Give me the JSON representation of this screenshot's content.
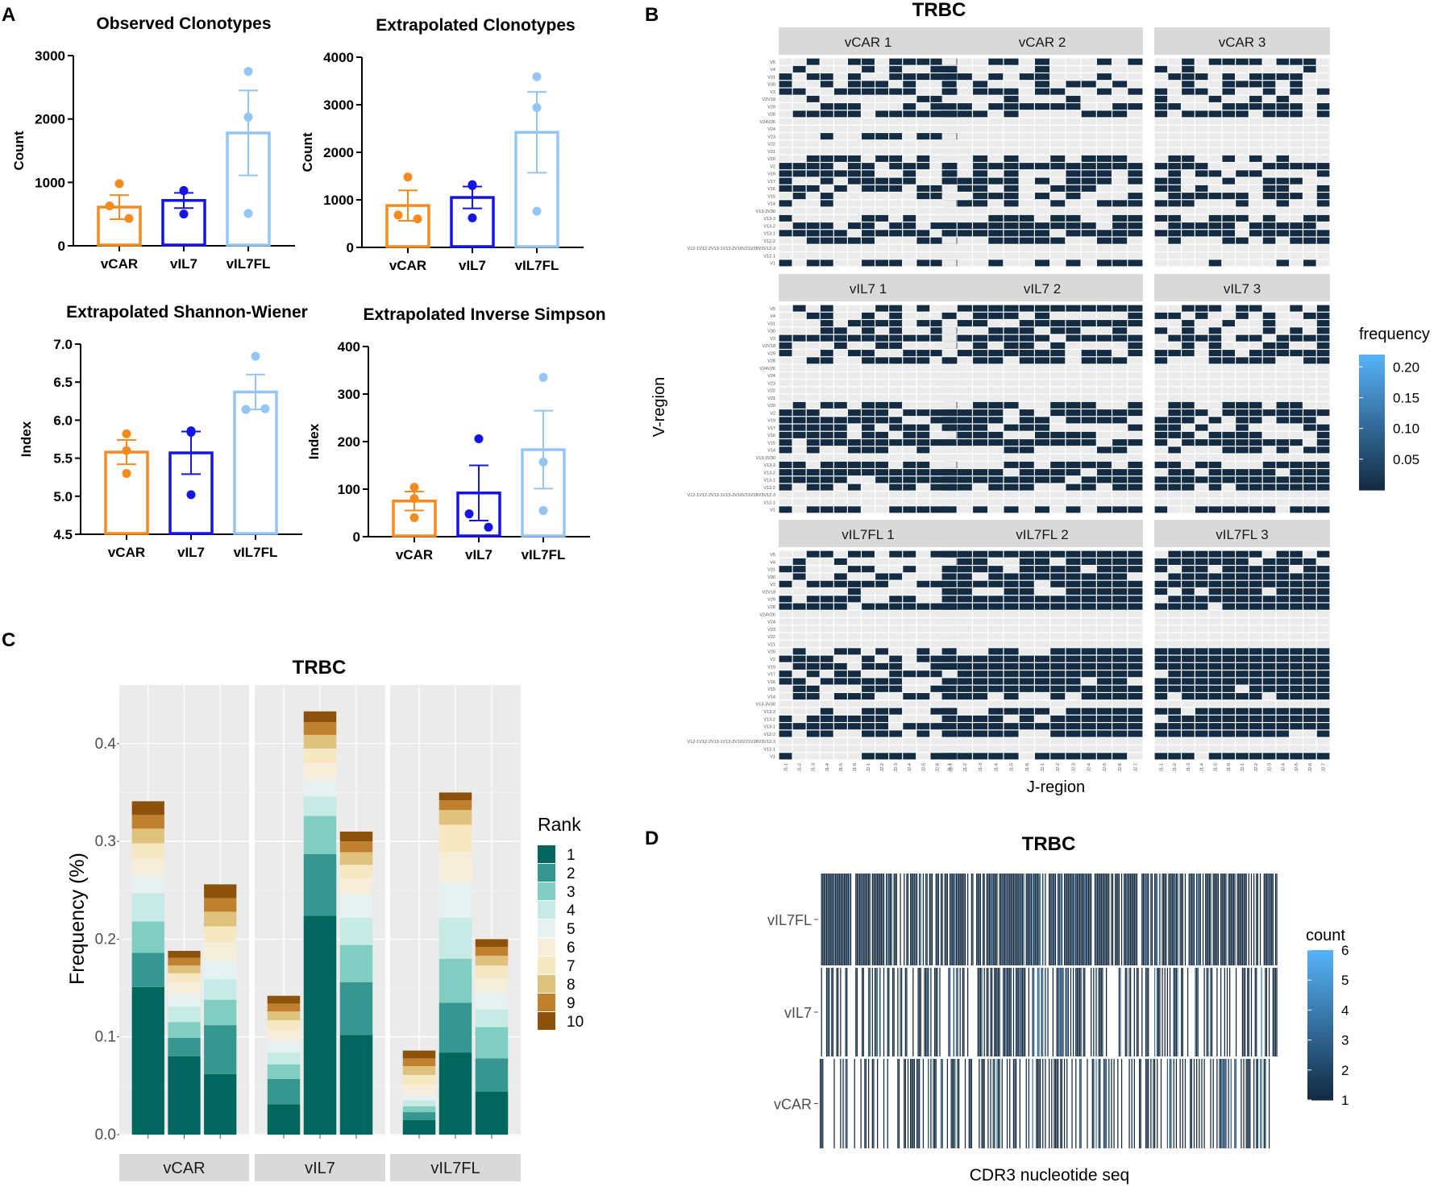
{
  "panels": {
    "A": "A",
    "B": "B",
    "C": "C",
    "D": "D"
  },
  "colors": {
    "vCAR": "#f58a1f",
    "vIL7": "#1414e6",
    "vIL7FL": "#94c6f5",
    "heat_dark": "#132b43",
    "heat_light": "#56b1f7",
    "ggplot_bg": "#ebebeb",
    "strip_bg": "#d9d9d9",
    "empty_cell": "#ebebeb"
  },
  "chart_data": [
    {
      "id": "observed",
      "type": "bar",
      "title": "Observed Clonotypes",
      "ylabel": "Count",
      "categories": [
        "vCAR",
        "vIL7",
        "vIL7FL"
      ],
      "yticks": [
        "0",
        "1000",
        "2000",
        "3000"
      ],
      "ylim": [
        0,
        3000
      ],
      "values": [
        610,
        715,
        1780
      ],
      "errors": [
        190,
        120,
        670
      ],
      "points": [
        [
          980,
          630,
          430
        ],
        [
          870,
          870,
          500
        ],
        [
          2750,
          2030,
          510
        ]
      ]
    },
    {
      "id": "extrap_clono",
      "type": "bar",
      "title": "Extrapolated Clonotypes",
      "ylabel": "Count",
      "categories": [
        "vCAR",
        "vIL7",
        "vIL7FL"
      ],
      "yticks": [
        "0",
        "1000",
        "2000",
        "3000",
        "4000"
      ],
      "ylim": [
        0,
        4000
      ],
      "values": [
        880,
        1050,
        2420
      ],
      "errors": [
        320,
        230,
        850
      ],
      "points": [
        [
          1480,
          680,
          600
        ],
        [
          1320,
          1300,
          620
        ],
        [
          3590,
          2940,
          760
        ]
      ]
    },
    {
      "id": "shannon",
      "type": "bar",
      "title": "Extrapolated Shannon-Wiener",
      "ylabel": "Index",
      "categories": [
        "vCAR",
        "vIL7",
        "vIL7FL"
      ],
      "yticks": [
        "4.5",
        "5.0",
        "5.5",
        "6.0",
        "6.5",
        "7.0"
      ],
      "ylim": [
        4.5,
        7.0
      ],
      "values": [
        5.58,
        5.57,
        6.37
      ],
      "errors": [
        0.16,
        0.28,
        0.23
      ],
      "points": [
        [
          5.82,
          5.6,
          5.3
        ],
        [
          5.86,
          5.84,
          5.02
        ],
        [
          6.84,
          6.14,
          6.15
        ]
      ]
    },
    {
      "id": "simpson",
      "type": "bar",
      "title": "Extrapolated Inverse Simpson",
      "ylabel": "Index",
      "categories": [
        "vCAR",
        "vIL7",
        "vIL7FL"
      ],
      "yticks": [
        "0",
        "100",
        "200",
        "300",
        "400"
      ],
      "ylim": [
        0,
        400
      ],
      "values": [
        75,
        92,
        183
      ],
      "errors": [
        20,
        58,
        82
      ],
      "points": [
        [
          104,
          80,
          40
        ],
        [
          206,
          48,
          20
        ],
        [
          335,
          157,
          55
        ]
      ]
    },
    {
      "id": "vj_heatmap",
      "type": "heatmap",
      "title": "TRBC",
      "xlabel": "J-region",
      "ylabel": "V-region",
      "facets": [
        "vCAR 1",
        "vCAR 2",
        "vCAR 3",
        "vIL7 1",
        "vIL7 2",
        "vIL7 3",
        "vIL7FL 1",
        "vIL7FL 2",
        "vIL7FL 3"
      ],
      "v_genes": [
        "V5",
        "V4",
        "V31",
        "V30",
        "V3",
        "V2V18",
        "V29",
        "V28",
        "V24V26",
        "V24",
        "V23",
        "V22",
        "V21",
        "V20",
        "V2",
        "V19",
        "V17",
        "V16",
        "V15",
        "V14",
        "V13-3V30",
        "V13-3",
        "V13-2",
        "V13-1",
        "V12-2",
        "V12-1V12-2V13-1V13-2V16V21V28V3V12-3",
        "V12-1",
        "V1"
      ],
      "j_genes": [
        "J1-1",
        "J1-2",
        "J1-3",
        "J1-4",
        "J1-5",
        "J1-6",
        "J2-1",
        "J2-2",
        "J2-3",
        "J2-4",
        "J2-5",
        "J2-6",
        "J2-7"
      ],
      "legend_title": "frequency",
      "legend_ticks": [
        "0.20",
        "0.15",
        "0.10",
        "0.05"
      ],
      "legend_tick_values": [
        0.2,
        0.15,
        0.1,
        0.05
      ],
      "legend_range": [
        0,
        0.22
      ]
    },
    {
      "id": "rank_bars",
      "type": "bar",
      "stacked": true,
      "title": "TRBC",
      "ylabel": "Frequency (%)",
      "yticks": [
        "0.0",
        "0.1",
        "0.2",
        "0.3",
        "0.4"
      ],
      "ytick_values": [
        0,
        0.1,
        0.2,
        0.3,
        0.4
      ],
      "ylim": [
        0,
        0.46
      ],
      "groups": [
        "vCAR",
        "vIL7",
        "vIL7FL"
      ],
      "legend_title": "Rank",
      "ranks": [
        "1",
        "2",
        "3",
        "4",
        "5",
        "6",
        "7",
        "8",
        "9",
        "10"
      ],
      "rank_colors": [
        "#01665e",
        "#35978f",
        "#80cdc1",
        "#c7eae5",
        "#e6f2f1",
        "#f6eedb",
        "#f6e8c3",
        "#dfc27d",
        "#bf812d",
        "#8c510a"
      ],
      "series": [
        {
          "group": "vCAR",
          "replicate": 1,
          "values": [
            0.151,
            0.035,
            0.032,
            0.029,
            0.018,
            0.017,
            0.016,
            0.015,
            0.014,
            0.014
          ]
        },
        {
          "group": "vCAR",
          "replicate": 2,
          "values": [
            0.08,
            0.019,
            0.016,
            0.016,
            0.013,
            0.012,
            0.009,
            0.008,
            0.008,
            0.007
          ]
        },
        {
          "group": "vCAR",
          "replicate": 3,
          "values": [
            0.062,
            0.05,
            0.026,
            0.021,
            0.02,
            0.018,
            0.016,
            0.015,
            0.014,
            0.014
          ]
        },
        {
          "group": "vIL7",
          "replicate": 1,
          "values": [
            0.031,
            0.026,
            0.015,
            0.012,
            0.012,
            0.011,
            0.01,
            0.009,
            0.008,
            0.008
          ]
        },
        {
          "group": "vIL7",
          "replicate": 2,
          "values": [
            0.224,
            0.063,
            0.039,
            0.02,
            0.017,
            0.017,
            0.015,
            0.014,
            0.013,
            0.011
          ]
        },
        {
          "group": "vIL7",
          "replicate": 3,
          "values": [
            0.102,
            0.054,
            0.038,
            0.028,
            0.024,
            0.016,
            0.014,
            0.013,
            0.011,
            0.01
          ]
        },
        {
          "group": "vIL7FL",
          "replicate": 1,
          "values": [
            0.015,
            0.008,
            0.006,
            0.006,
            0.005,
            0.011,
            0.01,
            0.009,
            0.008,
            0.008
          ]
        },
        {
          "group": "vIL7FL",
          "replicate": 2,
          "values": [
            0.084,
            0.051,
            0.045,
            0.042,
            0.036,
            0.031,
            0.028,
            0.015,
            0.01,
            0.008
          ]
        },
        {
          "group": "vIL7FL",
          "replicate": 3,
          "values": [
            0.044,
            0.034,
            0.032,
            0.018,
            0.018,
            0.014,
            0.013,
            0.01,
            0.009,
            0.008
          ]
        }
      ]
    },
    {
      "id": "cdr3_heatmap",
      "type": "heatmap",
      "title": "TRBC",
      "xlabel": "CDR3 nucleotide seq",
      "rows": [
        "vIL7FL",
        "vIL7",
        "vCAR"
      ],
      "fill_fraction": [
        0.8,
        0.5,
        0.42
      ],
      "legend_title": "count",
      "legend_ticks": [
        "6",
        "5",
        "4",
        "3",
        "2",
        "1"
      ],
      "legend_tick_values": [
        6,
        5,
        4,
        3,
        2,
        1
      ],
      "legend_range": [
        1,
        6
      ]
    }
  ]
}
